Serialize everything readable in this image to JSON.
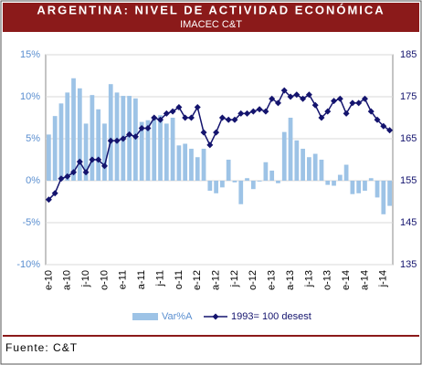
{
  "chart_data": {
    "type": "bar-line",
    "title": "ARGENTINA: NIVEL DE ACTIVIDAD ECONÓMICA",
    "subtitle": "IMACEC C&T",
    "source": "Fuente: C&T",
    "categories": [
      "e-10",
      null,
      null,
      "a-10",
      null,
      null,
      "j-10",
      null,
      null,
      "o-10",
      null,
      null,
      "e-11",
      null,
      null,
      "a-11",
      null,
      null,
      "j-11",
      null,
      null,
      "o-11",
      null,
      null,
      "e-12",
      null,
      null,
      "a-12",
      null,
      null,
      "j-12",
      null,
      null,
      "o-12",
      null,
      null,
      "e-13",
      null,
      null,
      "a-13",
      null,
      null,
      "j-13",
      null,
      null,
      "o-13",
      null,
      null,
      "e-14",
      null,
      null,
      "a-14",
      null,
      null,
      "j-14",
      null
    ],
    "series": [
      {
        "name": "Var%A",
        "color": "#9dc3e6",
        "axis": "y",
        "values": [
          5.5,
          7.7,
          9.2,
          10.5,
          12.2,
          11,
          6.8,
          10.2,
          8.5,
          6.8,
          11.5,
          10.5,
          10.1,
          10.1,
          9.8,
          7,
          7.2,
          7.5,
          7.8,
          6.8,
          7.5,
          4.2,
          4.4,
          3.8,
          2.8,
          3.8,
          -1.2,
          -1.5,
          -0.8,
          2.5,
          -0.2,
          -2.8,
          0.3,
          -1.0,
          -0.1,
          2.2,
          1.2,
          -0.3,
          5.8,
          7.5,
          4.8,
          3.8,
          2.8,
          3.2,
          2.5,
          -0.5,
          -0.6,
          0.7,
          1.9,
          -1.6,
          -1.5,
          -1.2,
          0.3,
          -2.0,
          -4.0,
          -3.0
        ]
      },
      {
        "name": "1993= 100 desest",
        "color": "#14146e",
        "axis": "y2",
        "values": [
          150.5,
          152,
          155.5,
          156,
          157,
          159.5,
          157,
          160,
          160,
          158.5,
          164.5,
          164.5,
          165,
          166,
          165.5,
          167.5,
          167.5,
          170,
          169.5,
          171,
          171.5,
          172.5,
          170,
          170,
          172.5,
          166.5,
          163.5,
          166.5,
          170,
          169.5,
          169.5,
          171,
          171,
          171.5,
          172,
          171.5,
          174.5,
          173.5,
          176.5,
          175,
          175.5,
          174.5,
          175.5,
          173,
          170,
          171.5,
          174,
          174.5,
          171,
          173.5,
          173.5,
          174.5,
          171.5,
          169.5,
          168,
          167
        ]
      }
    ],
    "ylim": [
      -10,
      15
    ],
    "yticks": [
      {
        "value": -10,
        "label": "-10%"
      },
      {
        "value": -5,
        "label": "-5%"
      },
      {
        "value": 0,
        "label": "0%"
      },
      {
        "value": 5,
        "label": "5%"
      },
      {
        "value": 10,
        "label": "10%"
      },
      {
        "value": 15,
        "label": "15%"
      }
    ],
    "y2lim": [
      135,
      185
    ],
    "y2ticks": [
      135,
      145,
      155,
      165,
      175,
      185
    ],
    "grid": true
  }
}
